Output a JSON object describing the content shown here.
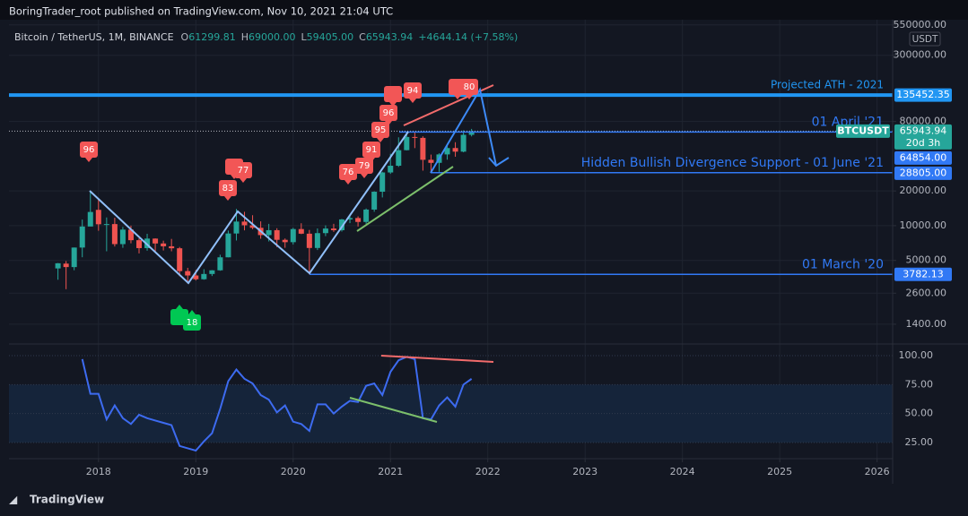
{
  "header": {
    "publisher": "BoringTrader_root published on TradingView.com, Nov 10, 2021 21:04 UTC"
  },
  "legend": {
    "symbol": "Bitcoin / TetherUS, 1M, BINANCE",
    "ohlc": [
      [
        "O",
        "61299.81"
      ],
      [
        "H",
        "69000.00"
      ],
      [
        "L",
        "59405.00"
      ],
      [
        "C",
        "65943.94"
      ]
    ],
    "change": "+4644.14 (+7.58%)"
  },
  "footer": {
    "brand": "TradingView"
  },
  "chart_data": [
    {
      "type": "candlestick",
      "log_scale": true,
      "axis_unit": "USDT",
      "xlim": [
        2017.08,
        2026.16
      ],
      "xticks": [
        2018,
        2019,
        2020,
        2021,
        2022,
        2023,
        2024,
        2025,
        2026
      ],
      "ylim": [
        960,
        610000
      ],
      "yticks": [
        {
          "value": 550000,
          "label": "550000.00"
        },
        {
          "value": 300000,
          "label": "300000.00"
        },
        {
          "value": 80000,
          "label": "80000.00"
        },
        {
          "value": 20000,
          "label": "20000.00"
        },
        {
          "value": 10000,
          "label": "10000.00"
        },
        {
          "value": 5000,
          "label": "5000.00"
        },
        {
          "value": 2600,
          "label": "2600.00"
        },
        {
          "value": 1400,
          "label": "1400.00"
        }
      ],
      "grid": true,
      "x": [
        2017.5833,
        2017.6667,
        2017.75,
        2017.8333,
        2017.9167,
        2018.0,
        2018.0833,
        2018.1667,
        2018.25,
        2018.3333,
        2018.4167,
        2018.5,
        2018.5833,
        2018.6667,
        2018.75,
        2018.8333,
        2018.9167,
        2019.0,
        2019.0833,
        2019.1667,
        2019.25,
        2019.3333,
        2019.4167,
        2019.5,
        2019.5833,
        2019.6667,
        2019.75,
        2019.8333,
        2019.9167,
        2020.0,
        2020.0833,
        2020.1667,
        2020.25,
        2020.3333,
        2020.4167,
        2020.5,
        2020.5833,
        2020.6667,
        2020.75,
        2020.8333,
        2020.9167,
        2021.0,
        2021.0833,
        2021.1667,
        2021.25,
        2021.3333,
        2021.4167,
        2021.5,
        2021.5833,
        2021.6667,
        2021.75,
        2021.8333
      ],
      "series": [
        {
          "name": "BTCUSDT",
          "up_color": "#26a69a",
          "down_color": "#ef5350",
          "values": [
            [
              4261,
              4745,
              3400,
              4724
            ],
            [
              4690,
              4939,
              2817,
              4378
            ],
            [
              4378,
              6470,
              4110,
              6463
            ],
            [
              6463,
              11300,
              5325,
              9838
            ],
            [
              9838,
              19798,
              10800,
              13150
            ],
            [
              13716,
              17176,
              9035,
              10285
            ],
            [
              10285,
              11786,
              6000,
              10326
            ],
            [
              10326,
              11710,
              6600,
              6923
            ],
            [
              6923,
              9765,
              6430,
              9246
            ],
            [
              9246,
              10020,
              7032,
              7485
            ],
            [
              7485,
              7760,
              5750,
              6391
            ],
            [
              6391,
              8507,
              6070,
              7730
            ],
            [
              7730,
              7770,
              5880,
              7011
            ],
            [
              7011,
              7410,
              6100,
              6626
            ],
            [
              6626,
              7680,
              6000,
              6371
            ],
            [
              6371,
              6540,
              3652,
              4041
            ],
            [
              4041,
              4313,
              3156,
              3702
            ],
            [
              3702,
              4140,
              3349,
              3434
            ],
            [
              3434,
              4198,
              3400,
              3814
            ],
            [
              3814,
              4123,
              3660,
              4103
            ],
            [
              4103,
              5600,
              4067,
              5320
            ],
            [
              5320,
              9074,
              5316,
              8555
            ],
            [
              8555,
              13970,
              7444,
              10854
            ],
            [
              10854,
              13200,
              9111,
              10085
            ],
            [
              10085,
              12325,
              9320,
              9588
            ],
            [
              9588,
              10905,
              7710,
              8289
            ],
            [
              8289,
              10370,
              7300,
              9140
            ],
            [
              9140,
              9505,
              6515,
              7541
            ],
            [
              7541,
              7750,
              6435,
              7196
            ],
            [
              7196,
              9578,
              6871,
              9350
            ],
            [
              9350,
              10500,
              8450,
              8523
            ],
            [
              8523,
              9188,
              3782,
              6410
            ],
            [
              6410,
              9468,
              6150,
              8620
            ],
            [
              8620,
              10067,
              8117,
              9448
            ],
            [
              9448,
              10380,
              8833,
              9137
            ],
            [
              9137,
              11444,
              8893,
              11335
            ],
            [
              11335,
              12468,
              10518,
              11649
            ],
            [
              11649,
              12050,
              9825,
              10776
            ],
            [
              10776,
              14100,
              10375,
              13791
            ],
            [
              13791,
              19863,
              13195,
              19695
            ],
            [
              19695,
              29300,
              17572,
              28923
            ],
            [
              28923,
              41950,
              28130,
              33092
            ],
            [
              33092,
              58352,
              32296,
              45135
            ],
            [
              45134,
              61844,
              44950,
              58740
            ],
            [
              58739,
              64854,
              47044,
              57694
            ],
            [
              57697,
              59500,
              30000,
              37253
            ],
            [
              37253,
              41330,
              28805,
              35045
            ],
            [
              35045,
              42448,
              29278,
              41461
            ],
            [
              41461,
              50500,
              37332,
              47100
            ],
            [
              47100,
              52920,
              39600,
              43824
            ],
            [
              43820,
              67000,
              43283,
              61299
            ],
            [
              61299,
              69000,
              59405,
              65943
            ]
          ]
        }
      ],
      "last_price": 65943.94,
      "last_price_label": "BTCUSDT",
      "countdown": "20d 3h",
      "last_price_color": "#26a69a",
      "levels": [
        {
          "price": 135452.35,
          "text": "Projected ATH - 2021",
          "color": "#2196f3"
        },
        {
          "price": {
            "value": 64854,
            "label": "64854.00"
          },
          "text": "01 April '21",
          "color": "#3179f5"
        },
        {
          "price": {
            "value": 28805,
            "label": "28805.00"
          },
          "text": "Hidden Bullish Divergence Support - 01 June '21",
          "color": "#3179f5"
        },
        {
          "price": 3782.13,
          "text": "01 March '20",
          "color": "#3179f5"
        }
      ],
      "signals_red": [
        "96",
        "83",
        "77",
        "76",
        "79",
        "91",
        "95",
        "96",
        "94",
        "80"
      ],
      "signals_green": [
        "18"
      ]
    },
    {
      "type": "line",
      "color": "#3d6bf0",
      "xlim": [
        2017.08,
        2026.16
      ],
      "ylim": [
        12.6,
        109.3
      ],
      "yticks": [
        {
          "value": 100,
          "label": "100.00"
        },
        {
          "value": 75,
          "label": "75.00"
        },
        {
          "value": 50,
          "label": "50.00"
        },
        {
          "value": 25,
          "label": "25.00"
        }
      ],
      "band": [
        25,
        75
      ],
      "x": [
        2017.8333,
        2017.9167,
        2018.0,
        2018.0833,
        2018.1667,
        2018.25,
        2018.3333,
        2018.4167,
        2018.5,
        2018.5833,
        2018.6667,
        2018.75,
        2018.8333,
        2018.9167,
        2019.0,
        2019.0833,
        2019.1667,
        2019.25,
        2019.3333,
        2019.4167,
        2019.5,
        2019.5833,
        2019.6667,
        2019.75,
        2019.8333,
        2019.9167,
        2020.0,
        2020.0833,
        2020.1667,
        2020.25,
        2020.3333,
        2020.4167,
        2020.5,
        2020.5833,
        2020.6667,
        2020.75,
        2020.8333,
        2020.9167,
        2021.0,
        2021.0833,
        2021.1667,
        2021.25,
        2021.3333,
        2021.4167,
        2021.5,
        2021.5833,
        2021.6667,
        2021.75,
        2021.8333
      ],
      "values": [
        97,
        67,
        67,
        45,
        57,
        46,
        41,
        49,
        46,
        44,
        42,
        40,
        22,
        20,
        18,
        26,
        33,
        54,
        78,
        88,
        80,
        76,
        66,
        62,
        51,
        57,
        43,
        41,
        35,
        58,
        58,
        50,
        56,
        61,
        60,
        74,
        76,
        66,
        86,
        96,
        99,
        97,
        46,
        45,
        57,
        64,
        56,
        75,
        80
      ]
    }
  ]
}
